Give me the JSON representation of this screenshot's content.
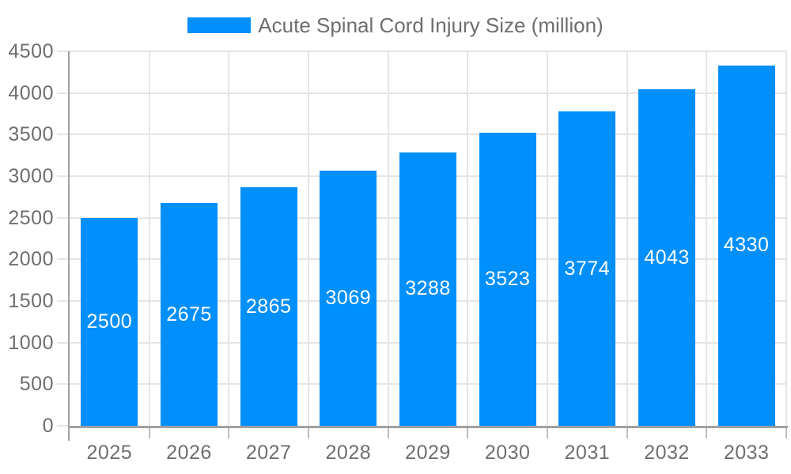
{
  "legend": {
    "label": "Acute Spinal Cord Injury Size (million)",
    "swatch_color": "#008FFB",
    "position": "top"
  },
  "chart_data": {
    "type": "bar",
    "title": "Acute Spinal Cord Injury Size (million)",
    "categories": [
      "2025",
      "2026",
      "2027",
      "2028",
      "2029",
      "2030",
      "2031",
      "2032",
      "2033"
    ],
    "series": [
      {
        "name": "Acute Spinal Cord Injury Size (million)",
        "color": "#008FFB",
        "values": [
          2500,
          2675,
          2865,
          3069,
          3288,
          3523,
          3774,
          4043,
          4330
        ]
      }
    ],
    "xlabel": "",
    "ylabel": "",
    "ylim": [
      0,
      4500
    ],
    "yticks": [
      0,
      500,
      1000,
      1500,
      2000,
      2500,
      3000,
      3500,
      4000,
      4500
    ],
    "grid": true,
    "legend_position": "top",
    "value_labels": {
      "visible": true,
      "position": "center",
      "color": "#FFFFFF"
    }
  },
  "colors": {
    "bar": "#008FFB",
    "axis_label_text": "#6E6E6E",
    "legend_text": "#6E6E6E",
    "value_label_text": "#FFFFFF",
    "gridline": "#E5E5E5",
    "axis_line": "#A0A0A0",
    "minor_tick": "#BDBDBD",
    "background": "#FFFFFF"
  }
}
